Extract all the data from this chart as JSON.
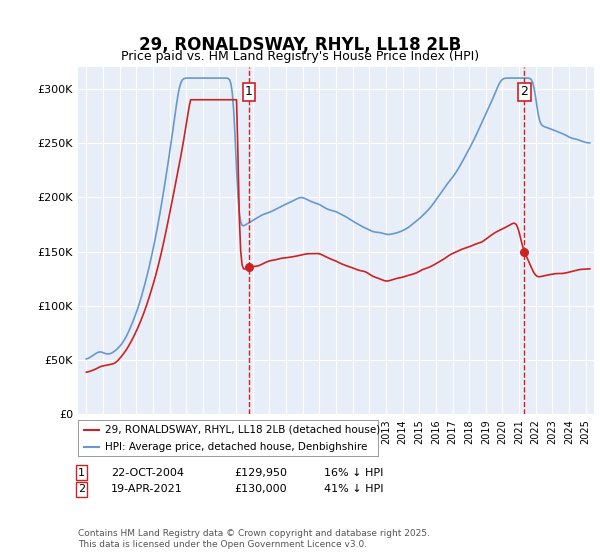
{
  "title": "29, RONALDSWAY, RHYL, LL18 2LB",
  "subtitle": "Price paid vs. HM Land Registry's House Price Index (HPI)",
  "hpi_color": "#6699cc",
  "price_color": "#cc2222",
  "marker1_date_idx": 118,
  "marker2_date_idx": 314,
  "marker1_label": "1",
  "marker2_label": "2",
  "marker1_price": 129950,
  "marker2_price": 130000,
  "marker1_date": "22-OCT-2004",
  "marker2_date": "19-APR-2021",
  "marker1_hpi_pct": "16% ↓ HPI",
  "marker2_hpi_pct": "41% ↓ HPI",
  "legend_line1": "29, RONALDSWAY, RHYL, LL18 2LB (detached house)",
  "legend_line2": "HPI: Average price, detached house, Denbighshire",
  "footer": "Contains HM Land Registry data © Crown copyright and database right 2025.\nThis data is licensed under the Open Government Licence v3.0.",
  "ylim": [
    0,
    320000
  ],
  "yticks": [
    0,
    50000,
    100000,
    150000,
    200000,
    250000,
    300000
  ],
  "ytick_labels": [
    "£0",
    "£50K",
    "£100K",
    "£150K",
    "£200K",
    "£250K",
    "£300K"
  ],
  "background_color": "#e8eef8",
  "plot_bg": "#e8eef8"
}
